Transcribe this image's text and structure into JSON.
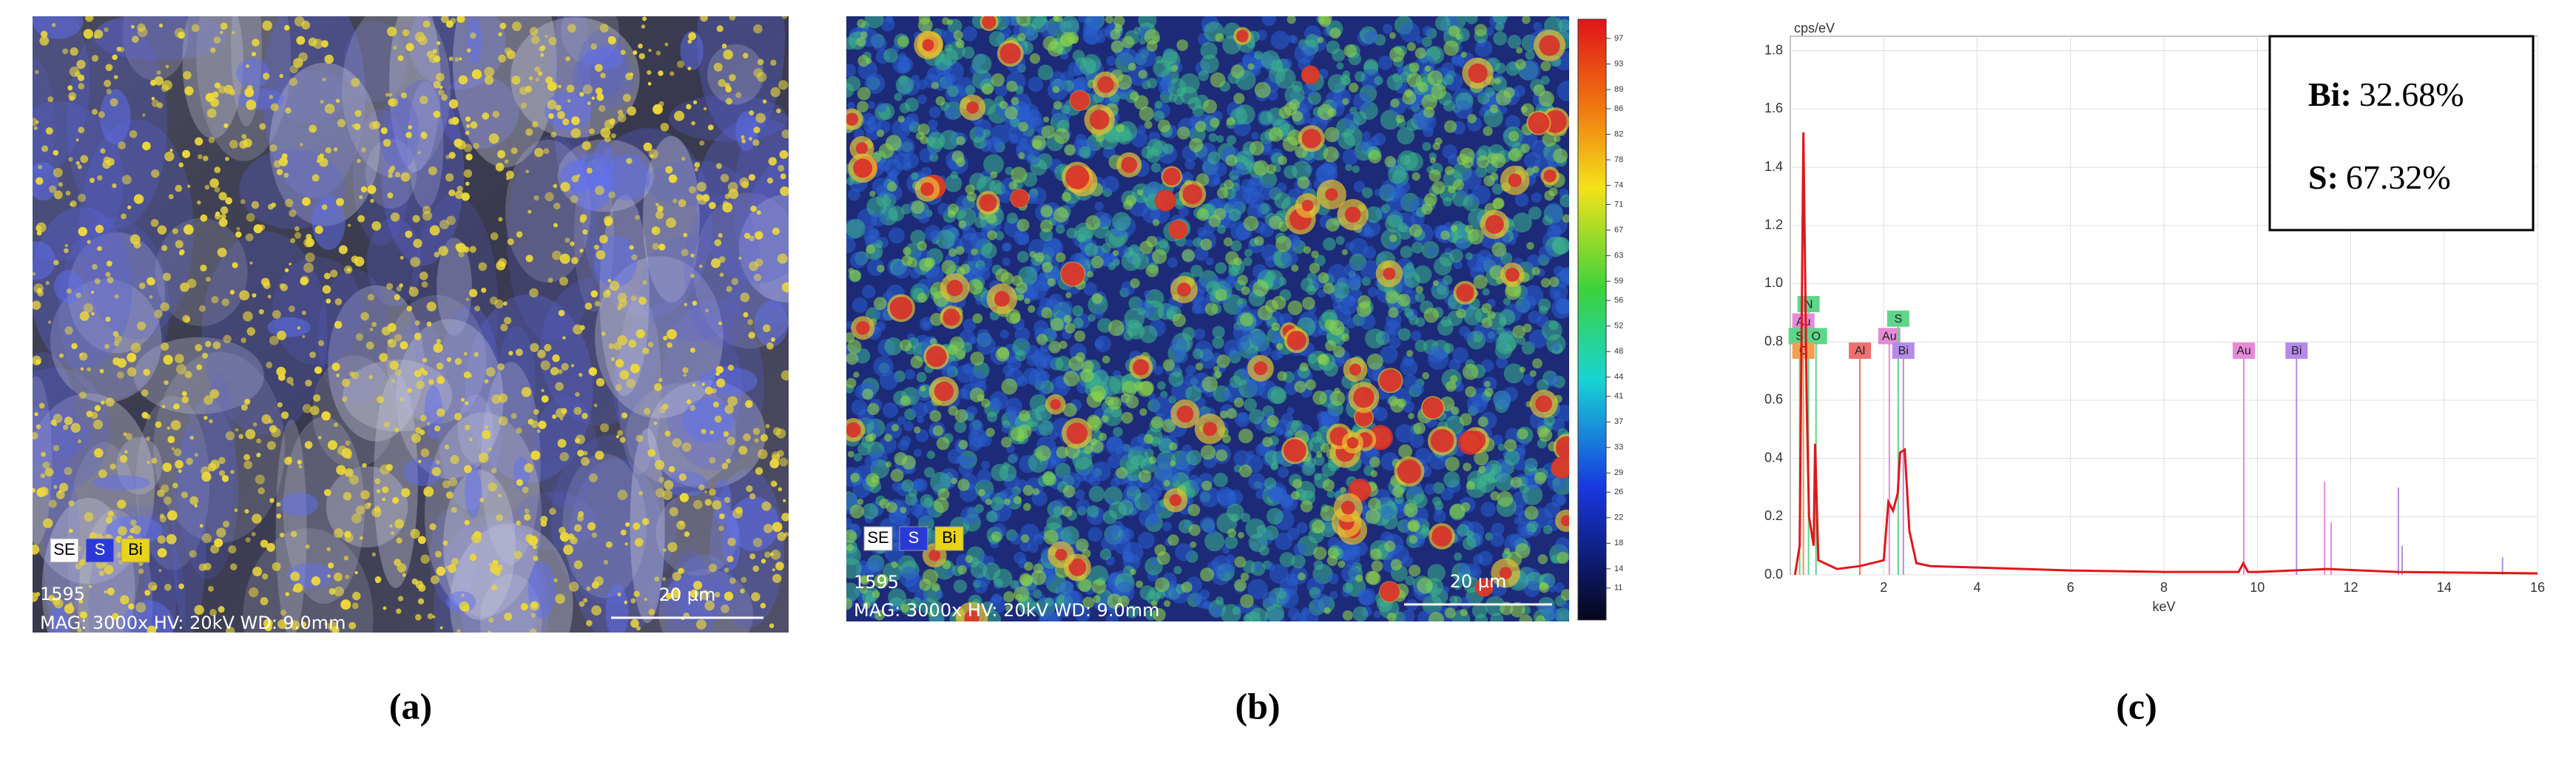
{
  "panels": [
    {
      "label": "(a)",
      "legend": [
        "SE",
        "S",
        "Bi"
      ],
      "id_text": "1595",
      "info": "MAG: 3000x  HV: 20kV  WD: 9.0mm",
      "scale_bar": "20 µm"
    },
    {
      "label": "(b)",
      "legend": [
        "SE",
        "S",
        "Bi"
      ],
      "id_text": "1595",
      "info": "MAG: 3000x  HV: 20kV  WD: 9.0mm",
      "scale_bar": "20 µm",
      "colorbar": {
        "lim": [
          6,
          100
        ],
        "ticks": [
          97,
          93,
          89,
          86,
          82,
          78,
          74,
          71,
          67,
          63,
          59,
          56,
          52,
          48,
          44,
          41,
          37,
          33,
          29,
          26,
          22,
          18,
          14,
          11
        ]
      }
    },
    {
      "label": "(c)",
      "composition": [
        {
          "element": "Bi:",
          "value": "32.68%"
        },
        {
          "element": "S:",
          "value": "67.32%"
        }
      ]
    }
  ],
  "chart_data": {
    "type": "line",
    "ylabel": "cps/eV",
    "xlabel": "keV",
    "xlim": [
      0,
      16
    ],
    "ylim": [
      0,
      1.85
    ],
    "xticks": [
      2,
      4,
      6,
      8,
      10,
      12,
      14,
      16
    ],
    "yticks": [
      {
        "value": 0,
        "label": "0.0"
      },
      0.2,
      0.4,
      0.6,
      0.8,
      {
        "value": 1,
        "label": "1.0"
      },
      1.2,
      1.4,
      1.6,
      1.8
    ],
    "grid": true,
    "series": [
      {
        "color": "#e0161b",
        "x": [
          0.1,
          0.2,
          0.28,
          0.35,
          0.4,
          0.5,
          0.53,
          0.6,
          1.0,
          1.49,
          2.0,
          2.1,
          2.2,
          2.3,
          2.35,
          2.45,
          2.55,
          2.7,
          3,
          4,
          6,
          8,
          9.6,
          9.7,
          9.8,
          10,
          11.5,
          13,
          16
        ],
        "values": [
          0,
          0.1,
          1.52,
          0.6,
          0.2,
          0.1,
          0.45,
          0.05,
          0.02,
          0.03,
          0.05,
          0.25,
          0.22,
          0.28,
          0.42,
          0.43,
          0.15,
          0.04,
          0.03,
          0.025,
          0.015,
          0.01,
          0.01,
          0.04,
          0.01,
          0.01,
          0.02,
          0.01,
          0.005
        ]
      }
    ],
    "peak_labels": [
      {
        "label": "N",
        "x": 0.39,
        "y": 0.93,
        "color": "#5fd58a"
      },
      {
        "label": "Au",
        "x": 0.28,
        "y": 0.87,
        "color": "#e58ad6"
      },
      {
        "label": "S",
        "x": 0.2,
        "y": 0.82,
        "color": "#5fd58a"
      },
      {
        "label": "O",
        "x": 0.55,
        "y": 0.82,
        "color": "#5fd58a"
      },
      {
        "label": "C",
        "x": 0.28,
        "y": 0.77,
        "color": "#f0a050"
      },
      {
        "label": "Al",
        "x": 1.49,
        "y": 0.77,
        "color": "#f07070"
      },
      {
        "label": "Au",
        "x": 2.12,
        "y": 0.82,
        "color": "#e58ad6"
      },
      {
        "label": "S",
        "x": 2.31,
        "y": 0.88,
        "color": "#5fd58a"
      },
      {
        "label": "Bi",
        "x": 2.42,
        "y": 0.77,
        "color": "#b58ae8"
      },
      {
        "label": "Au",
        "x": 9.71,
        "y": 0.77,
        "color": "#e58ad6"
      },
      {
        "label": "Bi",
        "x": 10.84,
        "y": 0.77,
        "color": "#b58ae8"
      }
    ],
    "minor_lines": [
      {
        "x": 11.44,
        "y": 0.32,
        "color": "#e58ad6"
      },
      {
        "x": 11.58,
        "y": 0.18,
        "color": "#e58ad6"
      },
      {
        "x": 13.02,
        "y": 0.3,
        "color": "#b58ae8"
      },
      {
        "x": 13.1,
        "y": 0.1,
        "color": "#b58ae8"
      },
      {
        "x": 15.25,
        "y": 0.06,
        "color": "#b58ae8"
      }
    ]
  }
}
